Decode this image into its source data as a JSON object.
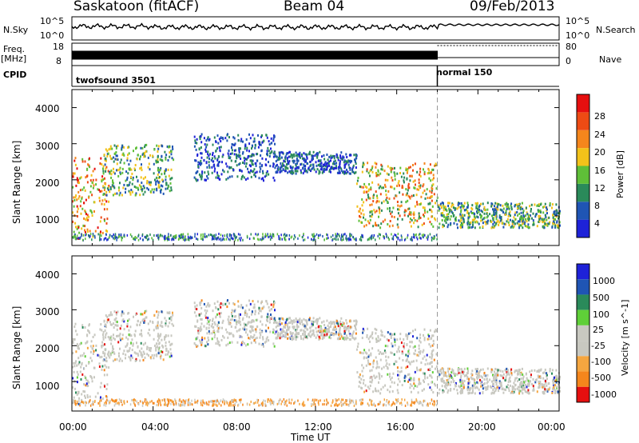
{
  "header": {
    "station": "Saskatoon (fitACF)",
    "beam": "Beam 04",
    "date": "09/Feb/2013"
  },
  "sidebar_labels": {
    "nsky": "N.Sky",
    "freq": "Freq.",
    "freq_unit": "[MHz]",
    "cpid": "CPID",
    "nsearch": "N.Search",
    "nave": "Nave"
  },
  "noise_panel": {
    "left_ticks": [
      "10^5",
      "10^0"
    ],
    "right_ticks": [
      "10^5",
      "10^0"
    ]
  },
  "freq_panel": {
    "left_ticks": [
      "18",
      "8"
    ],
    "right_ticks": [
      "80",
      "0"
    ]
  },
  "cpid_panel": {
    "modes": [
      {
        "label": "twofsound 3501",
        "start": "00:00",
        "end": "18:00"
      },
      {
        "label": "normal 150",
        "start": "18:00",
        "end": "24:00"
      }
    ]
  },
  "colors": {
    "power": [
      "#1e22d8",
      "#1f55b4",
      "#2a8a5a",
      "#5fbf38",
      "#f2c21a",
      "#f5861c",
      "#ee4b14",
      "#e60f0f"
    ],
    "velocity": [
      "#e60f0f",
      "#f5861c",
      "#f5a640",
      "#c8c8c0",
      "#c8c8c0",
      "#5fcf38",
      "#2a8a5a",
      "#1f55b4",
      "#1e22d8"
    ]
  },
  "chart_data": [
    {
      "type": "heatmap",
      "panel": "power",
      "ylabel": "Slant Range [km]",
      "yticks": [
        "1000",
        "2000",
        "3000",
        "4000"
      ],
      "ylim": [
        180,
        4500
      ],
      "xlim": [
        "00:00",
        "24:00"
      ],
      "colorbar_label": "Power [dB]",
      "colorbar_ticks": [
        "4",
        "8",
        "12",
        "16",
        "20",
        "24",
        "28"
      ],
      "colorbar_range": [
        0,
        30
      ],
      "echo_bands": [
        {
          "t0": 0.0,
          "t1": 1.8,
          "r0": 400,
          "r1": 2700,
          "level": "high"
        },
        {
          "t0": 1.5,
          "t1": 5.0,
          "r0": 1600,
          "r1": 3000,
          "level": "medium"
        },
        {
          "t0": 6.0,
          "t1": 10.0,
          "r0": 2000,
          "r1": 3300,
          "level": "low"
        },
        {
          "t0": 10.0,
          "t1": 14.0,
          "r0": 2200,
          "r1": 2800,
          "level": "low"
        },
        {
          "t0": 14.0,
          "t1": 18.0,
          "r0": 700,
          "r1": 2500,
          "level": "medium-high"
        },
        {
          "t0": 18.0,
          "t1": 24.0,
          "r0": 700,
          "r1": 1400,
          "level": "medium"
        }
      ]
    },
    {
      "type": "heatmap",
      "panel": "velocity",
      "ylabel": "Slant Range [km]",
      "yticks": [
        "1000",
        "2000",
        "3000",
        "4000"
      ],
      "ylim": [
        180,
        4500
      ],
      "xlim": [
        "00:00",
        "24:00"
      ],
      "xticks": [
        "00:00",
        "04:00",
        "08:00",
        "12:00",
        "16:00",
        "20:00",
        "00:00"
      ],
      "xlabel": "Time UT",
      "colorbar_label": "Velocity [m s^-1]",
      "colorbar_ticks": [
        "1000",
        "500",
        "100",
        "25",
        "-25",
        "-100",
        "-500",
        "-1000"
      ],
      "mode_change_time": "18:00"
    }
  ]
}
